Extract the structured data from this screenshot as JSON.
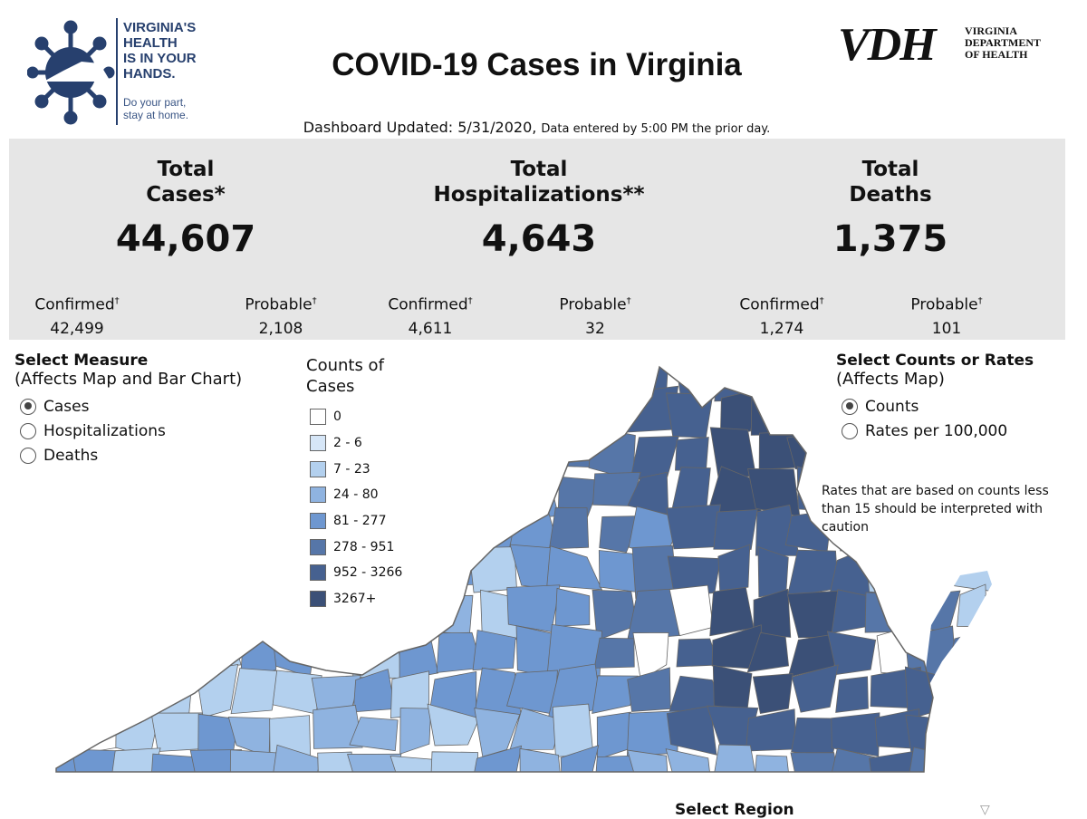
{
  "header": {
    "logo_left": {
      "lines": [
        "VIRGINIA'S",
        "HEALTH",
        "IS IN YOUR",
        "HANDS."
      ],
      "tagline": [
        "Do your part,",
        "stay at home."
      ]
    },
    "title": "COVID-19 Cases in Virginia",
    "logo_right": {
      "mark": "VDH",
      "lines": [
        "VIRGINIA",
        "DEPARTMENT",
        "OF HEALTH"
      ]
    },
    "updated": "Dashboard Updated: 5/31/2020,",
    "updated_note": "Data entered by 5:00 PM the prior day."
  },
  "stats": [
    {
      "label1": "Total",
      "label2": "Cases*",
      "value": "44,607",
      "confirmed_label": "Confirmed",
      "confirmed": "42,499",
      "probable_label": "Probable",
      "probable": "2,108"
    },
    {
      "label1": "Total",
      "label2": "Hospitalizations**",
      "value": "4,643",
      "confirmed_label": "Confirmed",
      "confirmed": "4,611",
      "probable_label": "Probable",
      "probable": "32"
    },
    {
      "label1": "Total",
      "label2": "Deaths",
      "value": "1,375",
      "confirmed_label": "Confirmed",
      "confirmed": "1,274",
      "probable_label": "Probable",
      "probable": "101"
    }
  ],
  "dagger": "†",
  "measure": {
    "title": "Select Measure",
    "subtitle": "(Affects Map and Bar Chart)",
    "options": [
      "Cases",
      "Hospitalizations",
      "Deaths"
    ],
    "selected": "Cases"
  },
  "legend": {
    "title1": "Counts of",
    "title2": "Cases",
    "items": [
      {
        "label": "0",
        "color": "#ffffff"
      },
      {
        "label": "2 - 6",
        "color": "#d6e6f7"
      },
      {
        "label": "7 - 23",
        "color": "#b3d0ee"
      },
      {
        "label": "24 - 80",
        "color": "#8fb3e0"
      },
      {
        "label": "81 - 277",
        "color": "#6e97d0"
      },
      {
        "label": "278 - 951",
        "color": "#5676a8"
      },
      {
        "label": "952 - 3266",
        "color": "#466190"
      },
      {
        "label": "3267+",
        "color": "#3b5077"
      }
    ]
  },
  "counts_rates": {
    "title": "Select Counts or Rates",
    "subtitle": "(Affects Map)",
    "options": [
      "Counts",
      "Rates per 100,000"
    ],
    "selected": "Counts"
  },
  "rates_note": "Rates that are based on counts less than 15 should be interpreted with caution",
  "region": {
    "title": "Select Region",
    "icon": "filter-icon"
  }
}
